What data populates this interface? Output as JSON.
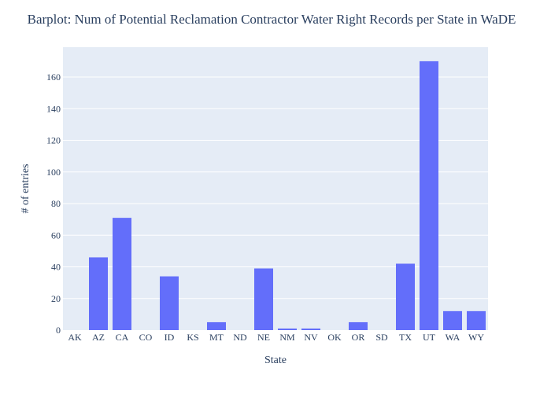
{
  "chart_data": {
    "type": "bar",
    "title": "Barplot: Num of Potential Reclamation Contractor Water Right Records per State in WaDE",
    "xlabel": "State",
    "ylabel": "# of entries",
    "categories": [
      "AK",
      "AZ",
      "CA",
      "CO",
      "ID",
      "KS",
      "MT",
      "ND",
      "NE",
      "NM",
      "NV",
      "OK",
      "OR",
      "SD",
      "TX",
      "UT",
      "WA",
      "WY"
    ],
    "values": [
      0,
      46,
      71,
      0,
      34,
      0,
      5,
      0,
      39,
      1,
      1,
      0,
      5,
      0,
      42,
      170,
      12,
      12
    ],
    "ylim": [
      0,
      178.9
    ],
    "yticks": [
      0,
      20,
      40,
      60,
      80,
      100,
      120,
      140,
      160
    ],
    "grid": true,
    "colors": {
      "bar": "#636efa",
      "plot_bg": "#e5ecf6",
      "grid": "#ffffff",
      "text": "#2a3f5f"
    }
  }
}
